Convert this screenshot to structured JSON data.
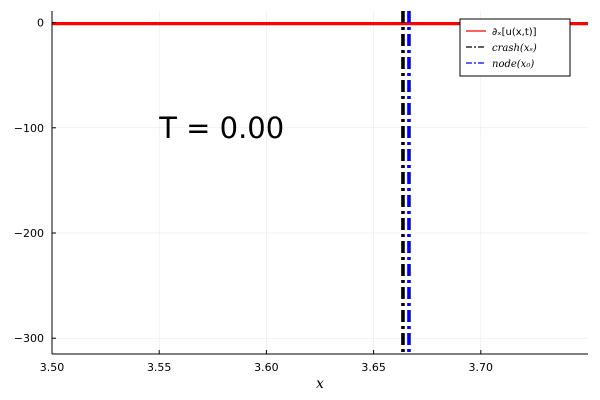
{
  "chart_data": {
    "type": "line",
    "xlabel": "x",
    "ylabel": "",
    "xlim": [
      3.5,
      3.75
    ],
    "ylim": [
      -315,
      11
    ],
    "x_ticks": [
      "3.50",
      "3.55",
      "3.60",
      "3.65",
      "3.70"
    ],
    "x_tick_values": [
      3.5,
      3.55,
      3.6,
      3.65,
      3.7
    ],
    "y_ticks": [
      "0",
      "−100",
      "−200",
      "−300"
    ],
    "y_tick_values": [
      0,
      -100,
      -200,
      -300
    ],
    "grid": true,
    "legend_position": "top-right",
    "annotation": {
      "text": "T = 0.00",
      "x": 3.55,
      "y": -100
    },
    "series": [
      {
        "name": "∂ₓ[u(x,t)]",
        "color": "#ff0000",
        "style": "solid",
        "kind": "line",
        "x": [
          3.5,
          3.75
        ],
        "y": [
          -1,
          -1
        ]
      },
      {
        "name": "crash(xₛ)",
        "color": "#000000",
        "style": "dashdot",
        "kind": "vline",
        "x": 3.6637
      },
      {
        "name": "node(x₀)",
        "color": "#0000ff",
        "style": "dashdot",
        "kind": "vline",
        "x": 3.6665
      }
    ]
  }
}
